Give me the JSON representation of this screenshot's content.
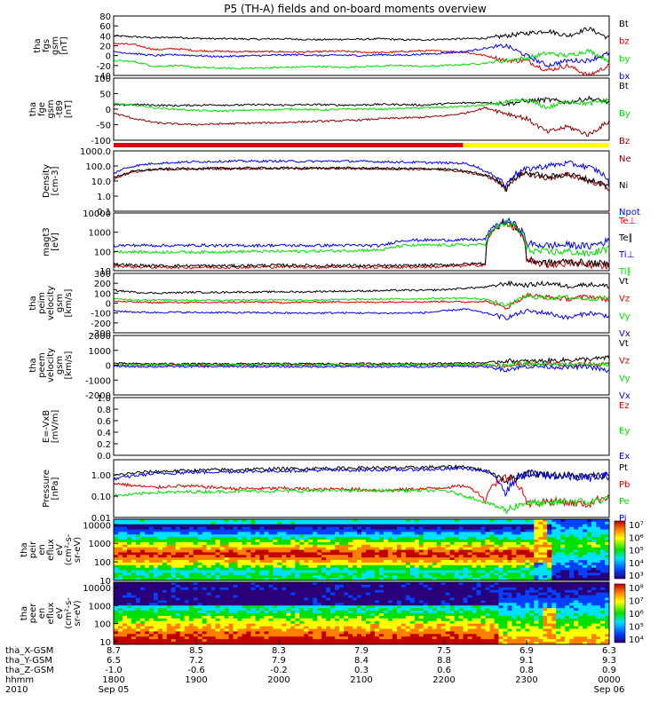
{
  "title": "P5 (TH-A) fields and on-board moments overview",
  "colors": {
    "black": "#000000",
    "red": "#e00000",
    "green": "#00e000",
    "blue": "#0000ff",
    "darkred": "#8b0000",
    "yellow": "#ffff00"
  },
  "chart_data": [
    {
      "type": "line",
      "ylabel": [
        "tha",
        "fgs",
        "gsm",
        "[nT]"
      ],
      "ylim": [
        -40,
        80
      ],
      "yticks": [
        "80",
        "60",
        "40",
        "20",
        "0",
        "-20",
        "-40"
      ],
      "series": [
        {
          "name": "Bt",
          "color": "black",
          "values": [
            40,
            38,
            36,
            37,
            35,
            34,
            34,
            33,
            34,
            33,
            32,
            33,
            33,
            34,
            32,
            32,
            33,
            34,
            35,
            40,
            45,
            50,
            40,
            55,
            35
          ]
        },
        {
          "name": "bz",
          "color": "red",
          "values": [
            25,
            22,
            12,
            14,
            10,
            9,
            8,
            8,
            8,
            7,
            8,
            9,
            7,
            6,
            8,
            10,
            9,
            7,
            0,
            -10,
            -10,
            -30,
            -20,
            -40,
            -20
          ]
        },
        {
          "name": "by",
          "color": "green",
          "values": [
            -10,
            -12,
            -22,
            -20,
            -24,
            -25,
            -26,
            -25,
            -24,
            -23,
            -22,
            -24,
            -22,
            -21,
            -20,
            -22,
            -20,
            -18,
            -15,
            -10,
            -5,
            5,
            0,
            10,
            -10
          ]
        },
        {
          "name": "bx",
          "color": "blue",
          "values": [
            8,
            4,
            0,
            2,
            0,
            -2,
            -1,
            0,
            1,
            2,
            0,
            1,
            0,
            2,
            1,
            3,
            5,
            8,
            15,
            20,
            0,
            -20,
            -10,
            -10,
            5
          ]
        }
      ]
    },
    {
      "type": "line",
      "ylabel": [
        "tha",
        "fge",
        "gsm",
        "-t89",
        "[nT]"
      ],
      "ylim": [
        -130,
        100
      ],
      "yticks": [
        "100",
        "50",
        "0",
        "-50",
        "-100"
      ],
      "series": [
        {
          "name": "Bt",
          "color": "black",
          "values": [
            0,
            2,
            0,
            -2,
            0,
            1,
            0,
            2,
            0,
            1,
            2,
            0,
            1,
            3,
            2,
            0,
            5,
            8,
            10,
            5,
            15,
            20,
            10,
            25,
            10
          ]
        },
        {
          "name": "By",
          "color": "green",
          "values": [
            5,
            0,
            -10,
            -15,
            -20,
            -22,
            -20,
            -18,
            -16,
            -15,
            -18,
            -16,
            -14,
            -15,
            -12,
            -10,
            -8,
            -5,
            0,
            10,
            20,
            -10,
            15,
            5,
            20
          ]
        },
        {
          "name": "Bz",
          "color": "darkred",
          "values": [
            -30,
            -50,
            -65,
            -70,
            -72,
            -70,
            -68,
            -66,
            -65,
            -62,
            -60,
            -58,
            -55,
            -50,
            -48,
            -45,
            -40,
            -30,
            -10,
            -30,
            -50,
            -100,
            -80,
            -110,
            -60
          ]
        }
      ]
    },
    {
      "type": "line",
      "ylog": true,
      "ylabel": [
        "Density",
        "[cm-3]"
      ],
      "ylim": [
        0.1,
        1000
      ],
      "yticks": [
        "1000.0",
        "100.0",
        "10.0",
        "1.0",
        "0.1"
      ],
      "series": [
        {
          "name": "Ne",
          "color": "darkred",
          "values": [
            12,
            40,
            55,
            60,
            62,
            65,
            66,
            68,
            68,
            66,
            67,
            68,
            66,
            65,
            62,
            60,
            55,
            40,
            20,
            2,
            30,
            15,
            25,
            10,
            3
          ]
        },
        {
          "name": "Ni",
          "color": "black",
          "values": [
            15,
            45,
            60,
            66,
            68,
            70,
            72,
            73,
            74,
            72,
            73,
            74,
            72,
            70,
            68,
            66,
            62,
            45,
            25,
            2,
            35,
            18,
            28,
            12,
            4
          ]
        },
        {
          "name": "Npot",
          "color": "blue",
          "values": [
            30,
            100,
            150,
            170,
            190,
            200,
            210,
            205,
            210,
            200,
            205,
            210,
            200,
            190,
            180,
            170,
            160,
            150,
            40,
            3,
            60,
            100,
            150,
            80,
            5
          ]
        }
      ]
    },
    {
      "type": "line",
      "ylog": true,
      "ylabel": [
        "magt3",
        "[eV]"
      ],
      "ylim": [
        10,
        10000
      ],
      "yticks": [
        "10000",
        "1000",
        "100",
        "10"
      ],
      "series": [
        {
          "name": "Te⊥",
          "color": "red",
          "values": [
            18,
            16,
            15,
            15,
            15,
            15,
            15,
            15,
            16,
            16,
            15,
            16,
            15,
            15,
            15,
            16,
            16,
            18,
            20,
            3000,
            30,
            20,
            25,
            20,
            18
          ]
        },
        {
          "name": "Te∥",
          "color": "black",
          "values": [
            22,
            19,
            18,
            18,
            18,
            18,
            18,
            19,
            19,
            19,
            18,
            19,
            18,
            18,
            18,
            19,
            20,
            22,
            24,
            3500,
            35,
            25,
            30,
            24,
            22
          ]
        },
        {
          "name": "Ti⊥",
          "color": "blue",
          "values": [
            200,
            210,
            205,
            200,
            210,
            205,
            200,
            205,
            210,
            200,
            205,
            210,
            205,
            200,
            380,
            390,
            390,
            400,
            420,
            4000,
            250,
            200,
            220,
            180,
            350
          ]
        },
        {
          "name": "Ti∥",
          "color": "green",
          "values": [
            100,
            95,
            90,
            95,
            92,
            95,
            98,
            100,
            100,
            102,
            105,
            110,
            115,
            120,
            200,
            210,
            215,
            220,
            230,
            3000,
            120,
            90,
            100,
            70,
            140
          ]
        }
      ]
    },
    {
      "type": "line",
      "ylabel": [
        "tha",
        "peim",
        "velocity",
        "gsm",
        "[km/s]"
      ],
      "ylim": [
        -300,
        300
      ],
      "yticks": [
        "300",
        "200",
        "100",
        "0",
        "-100",
        "-200",
        "-300"
      ],
      "series": [
        {
          "name": "Vt",
          "color": "black",
          "values": [
            130,
            110,
            100,
            105,
            110,
            108,
            112,
            110,
            115,
            112,
            118,
            120,
            122,
            125,
            130,
            128,
            135,
            150,
            160,
            200,
            180,
            200,
            170,
            190,
            170
          ]
        },
        {
          "name": "Vz",
          "color": "red",
          "values": [
            20,
            10,
            5,
            8,
            5,
            6,
            8,
            10,
            5,
            8,
            10,
            12,
            8,
            10,
            15,
            12,
            18,
            10,
            20,
            -50,
            80,
            60,
            40,
            70,
            30
          ]
        },
        {
          "name": "Vy",
          "color": "green",
          "values": [
            40,
            35,
            30,
            32,
            30,
            28,
            30,
            32,
            35,
            30,
            32,
            35,
            38,
            40,
            42,
            45,
            48,
            50,
            40,
            -30,
            70,
            50,
            60,
            40,
            60
          ]
        },
        {
          "name": "Vx",
          "color": "blue",
          "values": [
            -80,
            -90,
            -95,
            -92,
            -96,
            -95,
            -98,
            -96,
            -100,
            -102,
            -100,
            -98,
            -100,
            -102,
            -100,
            -98,
            -80,
            -60,
            -100,
            -150,
            -80,
            -100,
            -150,
            -100,
            -130
          ]
        }
      ]
    },
    {
      "type": "line",
      "ylabel": [
        "tha",
        "peem",
        "velocity",
        "gsm",
        "[km/s]"
      ],
      "ylim": [
        -2000,
        2000
      ],
      "yticks": [
        "2000",
        "1000",
        "0",
        "-1000",
        "-2000"
      ],
      "series": [
        {
          "name": "Vt",
          "color": "black",
          "values": [
            120,
            100,
            90,
            95,
            92,
            90,
            95,
            98,
            100,
            95,
            98,
            100,
            105,
            110,
            112,
            115,
            120,
            140,
            160,
            300,
            250,
            300,
            350,
            400,
            500
          ]
        },
        {
          "name": "Vz",
          "color": "red",
          "values": [
            20,
            10,
            5,
            8,
            5,
            6,
            8,
            10,
            5,
            8,
            10,
            12,
            8,
            10,
            15,
            12,
            18,
            10,
            20,
            -50,
            80,
            60,
            40,
            70,
            30
          ]
        },
        {
          "name": "Vy",
          "color": "green",
          "values": [
            40,
            35,
            30,
            32,
            30,
            28,
            30,
            32,
            35,
            30,
            32,
            35,
            38,
            40,
            42,
            45,
            48,
            50,
            40,
            -30,
            70,
            50,
            60,
            40,
            60
          ]
        },
        {
          "name": "Vx",
          "color": "blue",
          "values": [
            -80,
            -90,
            -95,
            -92,
            -96,
            -95,
            -98,
            -96,
            -100,
            -102,
            -100,
            -98,
            -100,
            -102,
            -100,
            -98,
            -80,
            -60,
            -100,
            -300,
            -80,
            -100,
            -150,
            -100,
            -400
          ]
        }
      ]
    },
    {
      "type": "line",
      "ylabel": [
        "E=-VxB",
        "[mV/m]"
      ],
      "ylim": [
        0,
        1
      ],
      "yticks": [
        "1.0",
        "0.8",
        "0.6",
        "0.4",
        "0.2",
        "0.0"
      ],
      "series": [
        {
          "name": "Ez",
          "color": "red",
          "values": []
        },
        {
          "name": "Ey",
          "color": "green",
          "values": []
        },
        {
          "name": "Ex",
          "color": "blue",
          "values": []
        }
      ]
    },
    {
      "type": "line",
      "ylog": true,
      "ylabel": [
        "Pressure",
        "[nPa]"
      ],
      "ylim": [
        0.01,
        5
      ],
      "yticks": [
        "1.00",
        "0.10",
        "0.01"
      ],
      "series": [
        {
          "name": "Pt",
          "color": "black",
          "values": [
            0.9,
            1.2,
            1.4,
            1.5,
            1.6,
            1.7,
            1.7,
            1.8,
            1.9,
            1.9,
            2.0,
            2.0,
            2.1,
            2.1,
            2.1,
            2.2,
            2.3,
            2.4,
            1.5,
            0.5,
            1.2,
            1.0,
            0.9,
            0.8,
            1.0
          ]
        },
        {
          "name": "Pb",
          "color": "red",
          "values": [
            0.4,
            0.3,
            0.25,
            0.3,
            0.28,
            0.25,
            0.22,
            0.22,
            0.23,
            0.22,
            0.2,
            0.22,
            0.2,
            0.18,
            0.2,
            0.22,
            0.25,
            0.3,
            0.05,
            0.8,
            0.04,
            0.06,
            0.05,
            0.04,
            0.1
          ]
        },
        {
          "name": "Pe",
          "color": "green",
          "values": [
            0.1,
            0.12,
            0.15,
            0.15,
            0.16,
            0.16,
            0.17,
            0.17,
            0.17,
            0.17,
            0.18,
            0.18,
            0.18,
            0.18,
            0.18,
            0.18,
            0.18,
            0.1,
            0.05,
            0.02,
            0.05,
            0.04,
            0.06,
            0.05,
            0.08
          ]
        },
        {
          "name": "Pi",
          "color": "blue",
          "values": [
            0.6,
            0.9,
            1.1,
            1.2,
            1.3,
            1.35,
            1.4,
            1.45,
            1.5,
            1.55,
            1.6,
            1.6,
            1.65,
            1.7,
            1.7,
            1.75,
            1.8,
            2.0,
            1.4,
            0.1,
            1.1,
            0.9,
            0.8,
            0.7,
            0.9
          ]
        }
      ]
    },
    {
      "type": "heatmap",
      "ylog": true,
      "ylabel": [
        "tha",
        "peir",
        "en",
        "eflux",
        "eV",
        "(cm²-s-",
        "sr-eV)"
      ],
      "ylim": [
        10,
        20000
      ],
      "yticks": [
        "10000",
        "1000",
        "100",
        "10"
      ],
      "colorbar": {
        "ticks": [
          "10⁷",
          "10⁶",
          "10⁵",
          "10⁴",
          "10³"
        ]
      }
    },
    {
      "type": "heatmap",
      "ylog": true,
      "ylabel": [
        "tha",
        "peer",
        "en",
        "eflux",
        "eV",
        "(cm²-s-",
        "sr-eV)"
      ],
      "ylim": [
        7,
        20000
      ],
      "yticks": [
        "10000",
        "1000",
        "100",
        "10"
      ],
      "colorbar": {
        "ticks": [
          "10⁸",
          "10⁷",
          "10⁶",
          "10⁵",
          "10⁴"
        ]
      }
    }
  ],
  "xaxis": {
    "row_labels": [
      "tha_X-GSM",
      "tha_Y-GSM",
      "tha_Z-GSM",
      "hhmm",
      "2010"
    ],
    "ticks": [
      {
        "frac": 0.0,
        "rows": [
          "8.7",
          "6.5",
          "-1.0",
          "1800",
          "Sep 05"
        ]
      },
      {
        "frac": 0.1667,
        "rows": [
          "8.5",
          "7.2",
          "-0.6",
          "1900",
          ""
        ]
      },
      {
        "frac": 0.3333,
        "rows": [
          "8.3",
          "7.9",
          "-0.2",
          "2000",
          ""
        ]
      },
      {
        "frac": 0.5,
        "rows": [
          "7.9",
          "8.4",
          "0.3",
          "2100",
          ""
        ]
      },
      {
        "frac": 0.6667,
        "rows": [
          "7.5",
          "8.8",
          "0.6",
          "2200",
          ""
        ]
      },
      {
        "frac": 0.8333,
        "rows": [
          "6.9",
          "9.1",
          "0.8",
          "2300",
          ""
        ]
      },
      {
        "frac": 1.0,
        "rows": [
          "6.3",
          "9.3",
          "0.9",
          "0000",
          "Sep 06"
        ]
      }
    ]
  }
}
